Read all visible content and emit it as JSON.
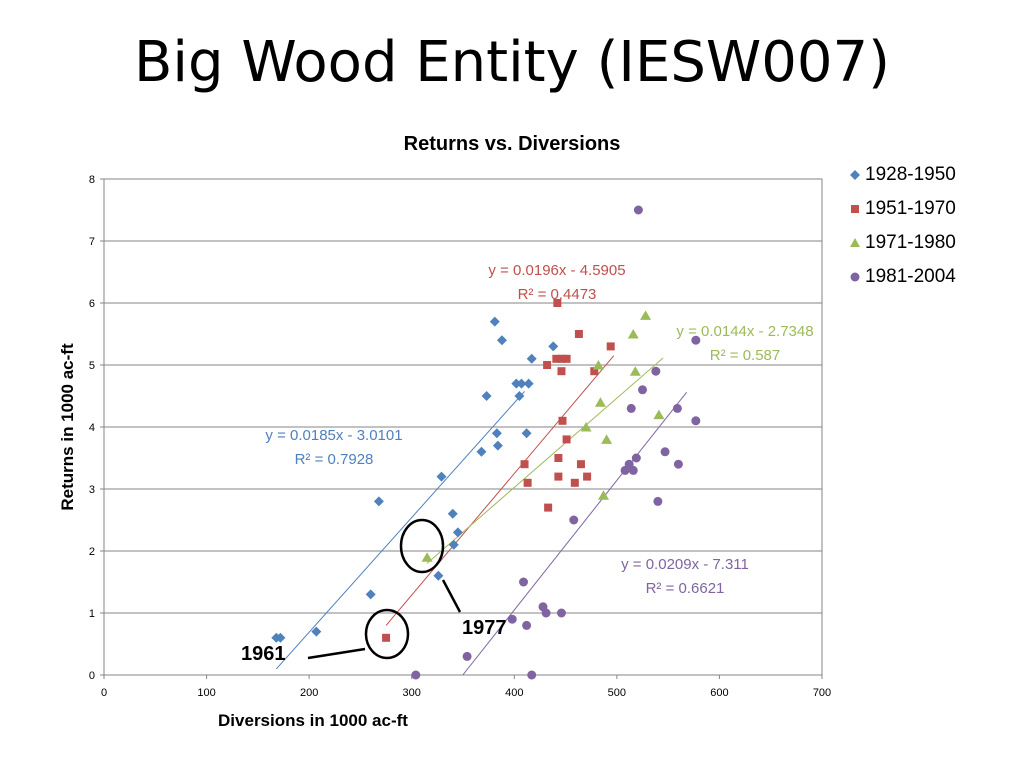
{
  "slide": {
    "title": "Big Wood Entity (IESW007)"
  },
  "chart_data": {
    "type": "scatter",
    "title": "Returns vs. Diversions",
    "xlabel": "Diversions in 1000 ac-ft",
    "ylabel": "Returns in 1000 ac-ft",
    "xlim": [
      0,
      700
    ],
    "ylim": [
      0,
      8
    ],
    "xticks": [
      0,
      100,
      200,
      300,
      400,
      500,
      600,
      700
    ],
    "yticks": [
      0,
      1,
      2,
      3,
      4,
      5,
      6,
      7,
      8
    ],
    "grid": "horizontal",
    "legend_position": "right",
    "series": [
      {
        "name": "1928-1950",
        "color": "#4F81BD",
        "marker": "diamond",
        "points": [
          [
            168,
            0.6
          ],
          [
            172,
            0.6
          ],
          [
            207,
            0.7
          ],
          [
            260,
            1.3
          ],
          [
            268,
            2.8
          ],
          [
            326,
            1.6
          ],
          [
            329,
            3.2
          ],
          [
            340,
            2.6
          ],
          [
            341,
            2.1
          ],
          [
            345,
            2.3
          ],
          [
            368,
            3.6
          ],
          [
            373,
            4.5
          ],
          [
            381,
            5.7
          ],
          [
            383,
            3.9
          ],
          [
            384,
            3.7
          ],
          [
            388,
            5.4
          ],
          [
            402,
            4.7
          ],
          [
            405,
            4.5
          ],
          [
            407,
            4.7
          ],
          [
            412,
            3.9
          ],
          [
            414,
            4.7
          ],
          [
            417,
            5.1
          ],
          [
            438,
            5.3
          ]
        ],
        "trendline": {
          "equation": "y = 0.0185x - 3.0101",
          "r2": "R² = 0.7928",
          "slope": 0.0185,
          "intercept": -3.0101,
          "x_range": [
            168,
            410
          ]
        }
      },
      {
        "name": "1951-1970",
        "color": "#C0504D",
        "marker": "square",
        "points": [
          [
            275,
            0.6
          ],
          [
            410,
            3.4
          ],
          [
            413,
            3.1
          ],
          [
            433,
            2.7
          ],
          [
            432,
            5.0
          ],
          [
            441,
            5.1
          ],
          [
            442,
            6.0
          ],
          [
            443,
            3.2
          ],
          [
            443,
            3.5
          ],
          [
            446,
            4.9
          ],
          [
            446,
            5.1
          ],
          [
            447,
            4.1
          ],
          [
            451,
            3.8
          ],
          [
            451,
            5.1
          ],
          [
            459,
            3.1
          ],
          [
            463,
            5.5
          ],
          [
            465,
            3.4
          ],
          [
            471,
            3.2
          ],
          [
            478,
            4.9
          ],
          [
            494,
            5.3
          ]
        ],
        "trendline": {
          "equation": "y = 0.0196x - 4.5905",
          "r2": "R² = 0.4473",
          "slope": 0.0196,
          "intercept": -4.5905,
          "x_range": [
            275,
            497
          ]
        }
      },
      {
        "name": "1971-1980",
        "color": "#9BBB59",
        "marker": "triangle",
        "points": [
          [
            315,
            1.9
          ],
          [
            470,
            4.0
          ],
          [
            482,
            5.0
          ],
          [
            484,
            4.4
          ],
          [
            487,
            2.9
          ],
          [
            490,
            3.8
          ],
          [
            516,
            5.5
          ],
          [
            518,
            4.9
          ],
          [
            528,
            5.8
          ],
          [
            541,
            4.2
          ]
        ],
        "trendline": {
          "equation": "y = 0.0144x - 2.7348",
          "r2": "R² = 0.587",
          "slope": 0.0144,
          "intercept": -2.7348,
          "x_range": [
            315,
            545
          ]
        }
      },
      {
        "name": "1981-2004",
        "color": "#8064A2",
        "marker": "circle",
        "points": [
          [
            304,
            0.0
          ],
          [
            354,
            0.3
          ],
          [
            398,
            0.9
          ],
          [
            409,
            1.5
          ],
          [
            412,
            0.8
          ],
          [
            417,
            0.0
          ],
          [
            428,
            1.1
          ],
          [
            431,
            1.0
          ],
          [
            446,
            1.0
          ],
          [
            458,
            2.5
          ],
          [
            508,
            3.3
          ],
          [
            512,
            3.4
          ],
          [
            514,
            4.3
          ],
          [
            516,
            3.3
          ],
          [
            519,
            3.5
          ],
          [
            521,
            7.5
          ],
          [
            525,
            4.6
          ],
          [
            538,
            4.9
          ],
          [
            540,
            2.8
          ],
          [
            547,
            3.6
          ],
          [
            559,
            4.3
          ],
          [
            560,
            3.4
          ],
          [
            577,
            4.1
          ],
          [
            577,
            5.4
          ]
        ],
        "trendline": {
          "equation": "y = 0.0209x - 7.311",
          "r2": "R² = 0.6621",
          "slope": 0.0209,
          "intercept": -7.311,
          "x_range": [
            350,
            568
          ]
        }
      }
    ],
    "annotations": [
      {
        "label": "1977",
        "target_series": "1971-1980",
        "target_point": [
          315,
          1.9
        ]
      },
      {
        "label": "1961",
        "target_series": "1951-1970",
        "target_point": [
          275,
          0.6
        ]
      }
    ]
  }
}
